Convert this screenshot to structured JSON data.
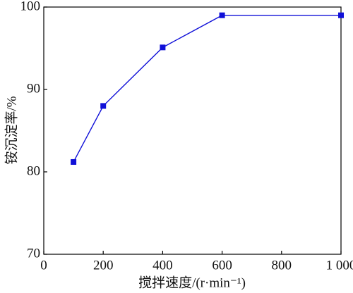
{
  "chart_data": {
    "type": "line",
    "x_label": "搅拌速度/(r·min⁻¹)",
    "y_label": "铵沉淀率/%",
    "x": [
      100,
      200,
      400,
      600,
      1000
    ],
    "values": [
      81.2,
      88,
      95.1,
      99,
      99
    ],
    "color": "#1010d8",
    "xlim": [
      0,
      1000
    ],
    "xticks": [
      0,
      200,
      400,
      600,
      800,
      {
        "value": 1000,
        "label": "1 000"
      }
    ],
    "ylim": [
      70,
      100
    ],
    "yticks": [
      70,
      80,
      90,
      100
    ],
    "grid": false
  }
}
